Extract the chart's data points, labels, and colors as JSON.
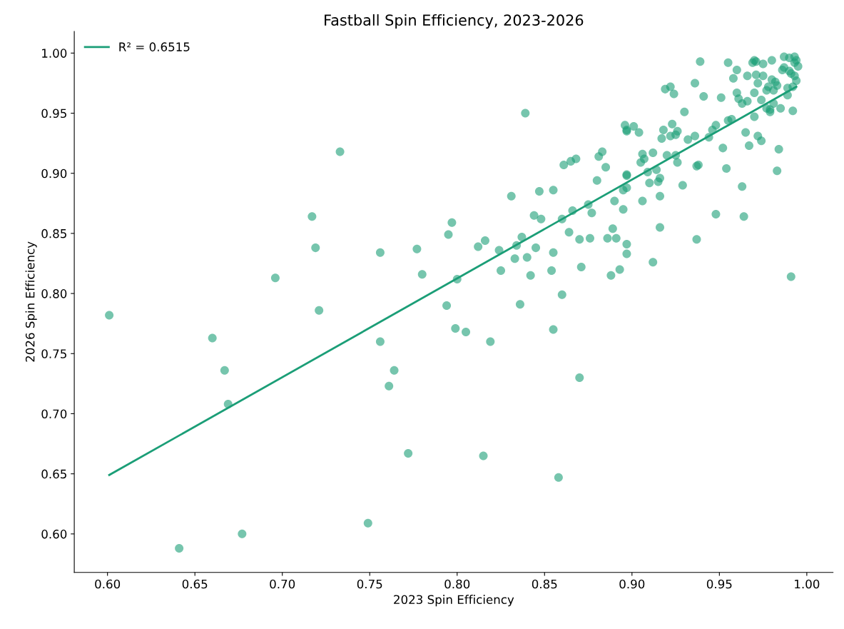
{
  "chart_data": {
    "type": "scatter",
    "title": "Fastball Spin Efficiency, 2023-2026",
    "xlabel": "2023 Spin Efficiency",
    "ylabel": "2026 Spin Efficiency",
    "xlim": [
      0.581,
      1.015
    ],
    "ylim": [
      0.568,
      1.018
    ],
    "xticks": [
      {
        "value": 0.6,
        "label": "0.60"
      },
      {
        "value": 0.65,
        "label": "0.65"
      },
      {
        "value": 0.7,
        "label": "0.70"
      },
      {
        "value": 0.75,
        "label": "0.75"
      },
      {
        "value": 0.8,
        "label": "0.80"
      },
      {
        "value": 0.85,
        "label": "0.85"
      },
      {
        "value": 0.9,
        "label": "0.90"
      },
      {
        "value": 0.95,
        "label": "0.95"
      },
      {
        "value": 1.0,
        "label": "1.00"
      }
    ],
    "yticks": [
      {
        "value": 0.6,
        "label": "0.60"
      },
      {
        "value": 0.65,
        "label": "0.65"
      },
      {
        "value": 0.7,
        "label": "0.70"
      },
      {
        "value": 0.75,
        "label": "0.75"
      },
      {
        "value": 0.8,
        "label": "0.80"
      },
      {
        "value": 0.85,
        "label": "0.85"
      },
      {
        "value": 0.9,
        "label": "0.90"
      },
      {
        "value": 0.95,
        "label": "0.95"
      },
      {
        "value": 1.0,
        "label": "1.00"
      }
    ],
    "grid": false,
    "legend": "top left",
    "series": [
      {
        "marker": "circle",
        "color": "#1b9e77",
        "x": [
          0.601,
          0.641,
          0.66,
          0.667,
          0.669,
          0.677,
          0.696,
          0.717,
          0.719,
          0.721,
          0.733,
          0.749,
          0.756,
          0.756,
          0.761,
          0.764,
          0.772,
          0.777,
          0.78,
          0.794,
          0.795,
          0.797,
          0.799,
          0.8,
          0.805,
          0.812,
          0.815,
          0.816,
          0.819,
          0.824,
          0.825,
          0.831,
          0.833,
          0.834,
          0.836,
          0.837,
          0.839,
          0.84,
          0.842,
          0.844,
          0.845,
          0.847,
          0.848,
          0.854,
          0.855,
          0.855,
          0.855,
          0.858,
          0.86,
          0.86,
          0.861,
          0.864,
          0.865,
          0.866,
          0.868,
          0.87,
          0.87,
          0.871,
          0.875,
          0.876,
          0.877,
          0.88,
          0.881,
          0.883,
          0.885,
          0.886,
          0.888,
          0.889,
          0.89,
          0.891,
          0.893,
          0.895,
          0.895,
          0.896,
          0.897,
          0.897,
          0.897,
          0.897,
          0.897,
          0.897,
          0.897,
          0.901,
          0.904,
          0.905,
          0.906,
          0.906,
          0.907,
          0.909,
          0.91,
          0.912,
          0.912,
          0.914,
          0.915,
          0.916,
          0.916,
          0.916,
          0.917,
          0.918,
          0.919,
          0.92,
          0.922,
          0.922,
          0.923,
          0.924,
          0.925,
          0.925,
          0.926,
          0.926,
          0.929,
          0.93,
          0.932,
          0.936,
          0.936,
          0.937,
          0.937,
          0.938,
          0.939,
          0.941,
          0.944,
          0.946,
          0.948,
          0.948,
          0.951,
          0.952,
          0.954,
          0.955,
          0.955,
          0.957,
          0.958,
          0.96,
          0.96,
          0.961,
          0.963,
          0.963,
          0.964,
          0.965,
          0.966,
          0.966,
          0.967,
          0.969,
          0.97,
          0.97,
          0.97,
          0.971,
          0.971,
          0.972,
          0.972,
          0.974,
          0.974,
          0.975,
          0.975,
          0.977,
          0.977,
          0.978,
          0.979,
          0.979,
          0.98,
          0.98,
          0.981,
          0.981,
          0.982,
          0.983,
          0.983,
          0.984,
          0.985,
          0.986,
          0.987,
          0.987,
          0.989,
          0.989,
          0.99,
          0.99,
          0.991,
          0.991,
          0.992,
          0.992,
          0.993,
          0.993,
          0.993,
          0.994,
          0.994,
          0.995
        ],
        "values": [
          0.782,
          0.588,
          0.763,
          0.736,
          0.708,
          0.6,
          0.813,
          0.864,
          0.838,
          0.786,
          0.918,
          0.609,
          0.834,
          0.76,
          0.723,
          0.736,
          0.667,
          0.837,
          0.816,
          0.79,
          0.849,
          0.859,
          0.771,
          0.812,
          0.768,
          0.839,
          0.665,
          0.844,
          0.76,
          0.836,
          0.819,
          0.881,
          0.829,
          0.84,
          0.791,
          0.847,
          0.95,
          0.83,
          0.815,
          0.865,
          0.838,
          0.885,
          0.862,
          0.819,
          0.834,
          0.77,
          0.886,
          0.647,
          0.862,
          0.799,
          0.907,
          0.851,
          0.91,
          0.869,
          0.912,
          0.845,
          0.73,
          0.822,
          0.874,
          0.846,
          0.867,
          0.894,
          0.914,
          0.918,
          0.905,
          0.846,
          0.815,
          0.854,
          0.877,
          0.846,
          0.82,
          0.886,
          0.87,
          0.94,
          0.935,
          0.936,
          0.898,
          0.899,
          0.888,
          0.841,
          0.833,
          0.939,
          0.934,
          0.909,
          0.877,
          0.916,
          0.912,
          0.901,
          0.892,
          0.917,
          0.826,
          0.903,
          0.893,
          0.896,
          0.881,
          0.855,
          0.929,
          0.936,
          0.97,
          0.915,
          0.972,
          0.931,
          0.941,
          0.966,
          0.932,
          0.915,
          0.909,
          0.935,
          0.89,
          0.951,
          0.928,
          0.975,
          0.931,
          0.906,
          0.845,
          0.907,
          0.993,
          0.964,
          0.93,
          0.936,
          0.866,
          0.94,
          0.963,
          0.921,
          0.904,
          0.992,
          0.944,
          0.945,
          0.979,
          0.986,
          0.967,
          0.962,
          0.889,
          0.958,
          0.864,
          0.934,
          0.981,
          0.96,
          0.923,
          0.992,
          0.994,
          0.947,
          0.967,
          0.993,
          0.982,
          0.975,
          0.931,
          0.927,
          0.961,
          0.991,
          0.981,
          0.969,
          0.954,
          0.972,
          0.953,
          0.951,
          0.994,
          0.978,
          0.958,
          0.969,
          0.976,
          0.973,
          0.902,
          0.92,
          0.954,
          0.986,
          0.997,
          0.988,
          0.971,
          0.965,
          0.996,
          0.985,
          0.814,
          0.983,
          0.952,
          0.972,
          0.997,
          0.992,
          0.981,
          0.977,
          0.994,
          0.989
        ]
      },
      {
        "type": "line",
        "name": "R² = 0.6515",
        "color": "#1b9e77",
        "x": [
          0.601,
          0.994
        ],
        "values": [
          0.649,
          0.972
        ]
      }
    ]
  }
}
